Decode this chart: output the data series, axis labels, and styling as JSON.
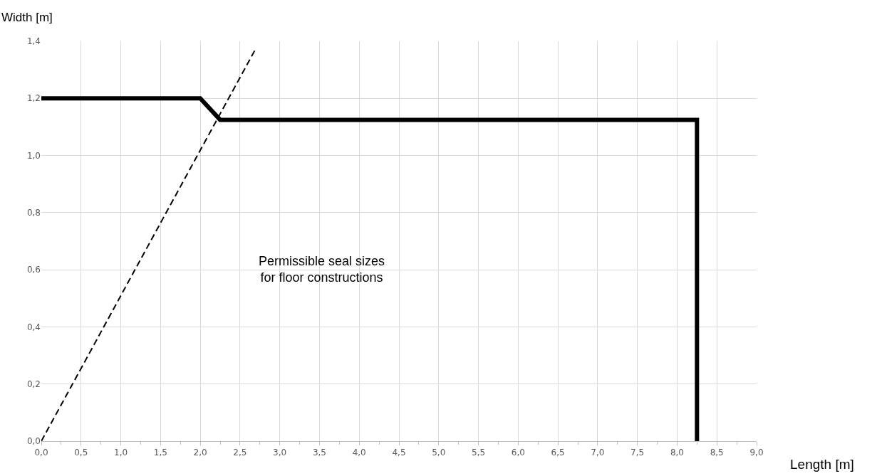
{
  "chart_data": {
    "type": "line",
    "xlabel": "Length [m]",
    "ylabel": "Width [m]",
    "annotations": [
      "Permissible seal sizes\nfor floor constructions"
    ],
    "series": [
      {
        "color": "#000000",
        "line_style": "solid",
        "x": [
          0,
          2,
          2.25,
          8.25,
          8.25
        ],
        "values": [
          1.2,
          1.2,
          1.125,
          1.125,
          0
        ]
      },
      {
        "color": "#000000",
        "line_style": "dashed",
        "x": [
          0,
          2.7
        ],
        "values": [
          0,
          1.375
        ]
      }
    ],
    "xlim": [
      0,
      9
    ],
    "ylim": [
      0,
      1.4
    ],
    "xticks": [
      {
        "value": 0,
        "label": "0,0"
      },
      {
        "value": 0.5,
        "label": "0,5"
      },
      {
        "value": 1,
        "label": "1,0"
      },
      {
        "value": 1.5,
        "label": "1,5"
      },
      {
        "value": 2,
        "label": "2,0"
      },
      {
        "value": 2.5,
        "label": "2,5"
      },
      {
        "value": 3,
        "label": "3,0"
      },
      {
        "value": 3.5,
        "label": "3,5"
      },
      {
        "value": 4,
        "label": "4,0"
      },
      {
        "value": 4.5,
        "label": "4,5"
      },
      {
        "value": 5,
        "label": "5,0"
      },
      {
        "value": 5.5,
        "label": "5,5"
      },
      {
        "value": 6,
        "label": "6,0"
      },
      {
        "value": 6.5,
        "label": "6,5"
      },
      {
        "value": 7,
        "label": "7,0"
      },
      {
        "value": 7.5,
        "label": "7,5"
      },
      {
        "value": 8,
        "label": "8,0"
      },
      {
        "value": 8.5,
        "label": "8,5"
      },
      {
        "value": 9,
        "label": "9,0"
      }
    ],
    "yticks": [
      {
        "value": 0,
        "label": "0,0"
      },
      {
        "value": 0.2,
        "label": "0,2"
      },
      {
        "value": 0.4,
        "label": "0,4"
      },
      {
        "value": 0.6,
        "label": "0,6"
      },
      {
        "value": 0.8,
        "label": "0,8"
      },
      {
        "value": 1,
        "label": "1,0"
      },
      {
        "value": 1.2,
        "label": "1,2"
      },
      {
        "value": 1.4,
        "label": "1,4"
      }
    ],
    "grid": true,
    "marker": "none"
  }
}
